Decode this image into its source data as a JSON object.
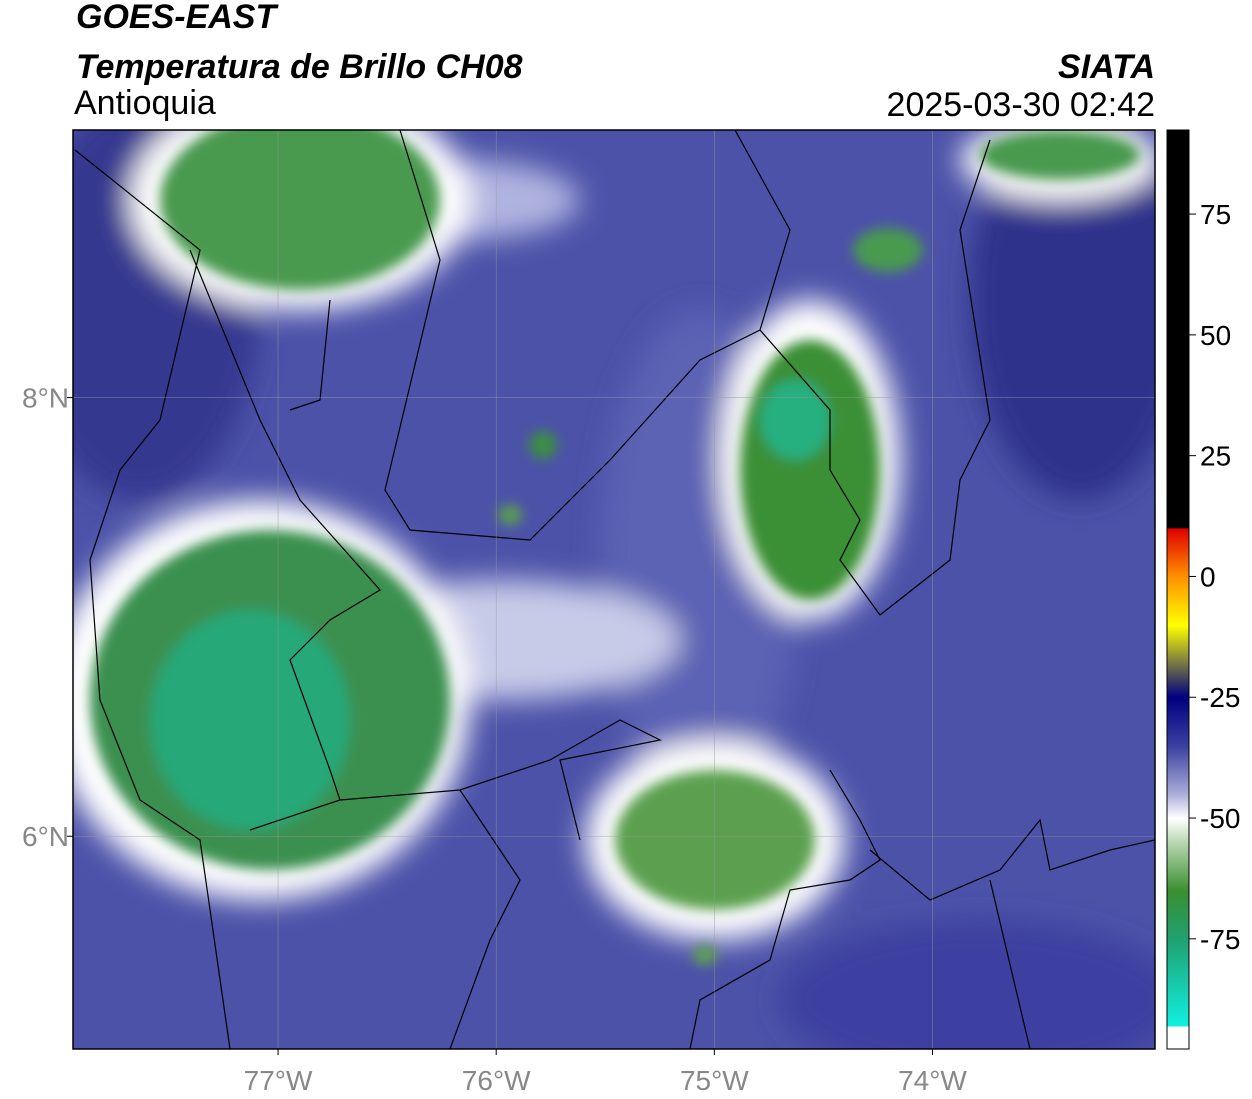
{
  "header": {
    "title": "GOES-EAST",
    "subtitle": "Temperatura de Brillo CH08",
    "region": "Antioquia",
    "agency": "SIATA",
    "datetime": "2025-03-30 02:42"
  },
  "map": {
    "xlim": [
      -77.94,
      -72.98
    ],
    "ylim": [
      5.03,
      9.22
    ],
    "xticks": [
      {
        "value": -77,
        "label": "77°W"
      },
      {
        "value": -76,
        "label": "76°W"
      },
      {
        "value": -75,
        "label": "75°W"
      },
      {
        "value": -74,
        "label": "74°W"
      }
    ],
    "yticks": [
      {
        "value": 8,
        "label": "8°N"
      },
      {
        "value": 6,
        "label": "6°N"
      }
    ],
    "grid": true
  },
  "colorbar": {
    "lim": [
      -97.8,
      92.4
    ],
    "ticks": [
      75,
      50,
      25,
      0,
      -25,
      -50,
      -75
    ]
  }
}
